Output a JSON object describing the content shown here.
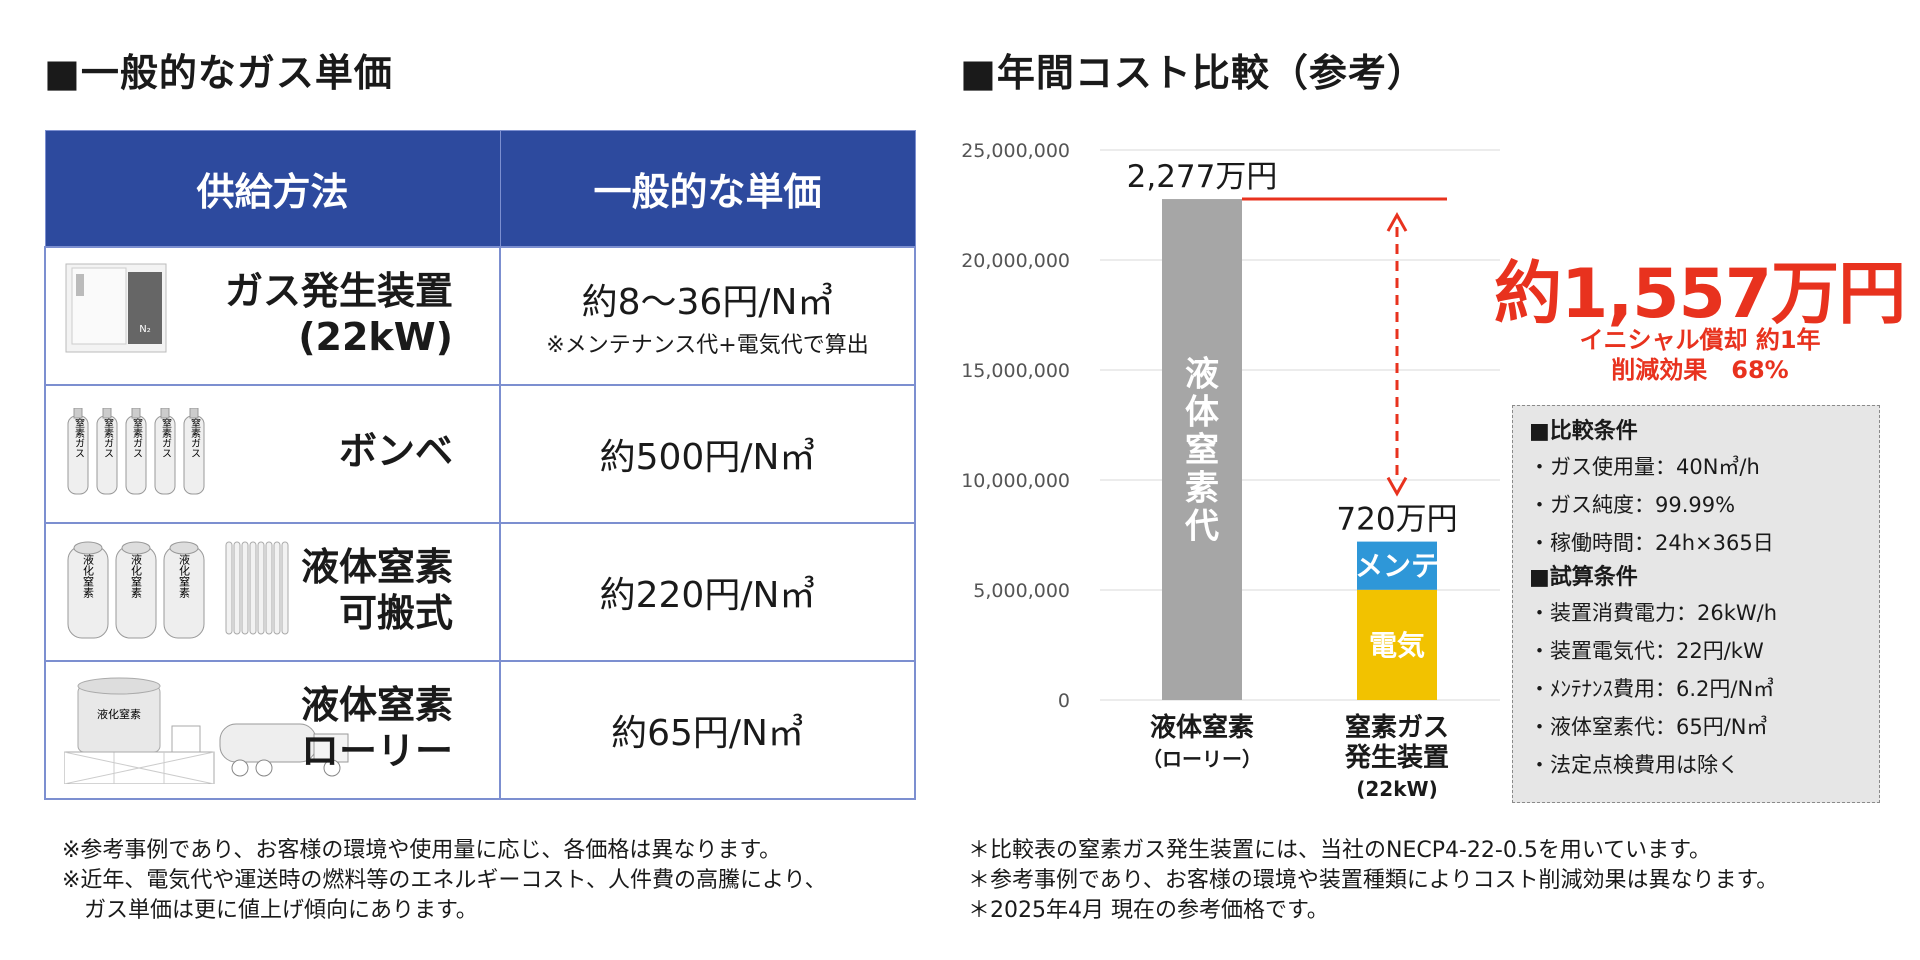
{
  "left": {
    "title": "■一般的なガス単価",
    "table": {
      "headers": [
        "供給方法",
        "一般的な単価"
      ],
      "rows": [
        {
          "method": [
            "ガス発生装置",
            "(22kW)"
          ],
          "price": "約8～36円/N㎥",
          "note": "※メンテナンス代+電気代で算出"
        },
        {
          "method": [
            "ボンベ"
          ],
          "price": "約500円/N㎥",
          "note": ""
        },
        {
          "method": [
            "液体窒素",
            "可搬式"
          ],
          "price": "約220円/N㎥",
          "note": ""
        },
        {
          "method": [
            "液体窒素",
            "ローリー"
          ],
          "price": "約65円/N㎥",
          "note": ""
        }
      ]
    },
    "illustration_text": {
      "cylinder": "窒素ガス",
      "portable": "液化窒素",
      "tank": "液化窒素",
      "generator_badge": "N₂"
    },
    "footnotes": [
      "※参考事例であり、お客様の環境や使用量に応じ、各価格は異なります。",
      "※近年、電気代や運送時の燃料等のエネルギーコスト、人件費の高騰により、",
      "ガス単価は更に値上げ傾向にあります。"
    ]
  },
  "right": {
    "title": "■年間コスト比較（参考）",
    "saving": {
      "amount": "約1,557万円",
      "line1": "イニシャル償却 約1年",
      "line2": "削減効果　68%"
    },
    "conditions": {
      "head1": "■比較条件",
      "items1": [
        "・ガス使用量：40N㎥/h",
        "・ガス純度：99.99%",
        "・稼働時間：24h×365日"
      ],
      "head2": "■試算条件",
      "items2": [
        "・装置消費電力：26kW/h",
        "・装置電気代：22円/kW",
        "・ﾒﾝﾃﾅﾝｽ費用：6.2円/N㎥",
        "・液体窒素代：65円/N㎥",
        "・法定点検費用は除く"
      ]
    },
    "footnotes": [
      "＊比較表の窒素ガス発生装置には、当社のNECP4-22-0.5を用いています。",
      "＊参考事例であり、お客様の環境や装置種類によりコスト削減効果は異なります。",
      "＊2025年4月 現在の参考価格です。"
    ]
  },
  "chart_data": {
    "type": "bar",
    "stacked": true,
    "categories": [
      {
        "label": "液体窒素",
        "sub": [
          "（ローリー）"
        ]
      },
      {
        "label": "窒素ガス",
        "sub": [
          "発生装置",
          "(22kW)"
        ]
      }
    ],
    "series": [
      {
        "name": "液体窒素代",
        "values": [
          22770000,
          0
        ],
        "color": "#a6a6a6"
      },
      {
        "name": "電気",
        "values": [
          0,
          5010000
        ],
        "color": "#f2c200"
      },
      {
        "name": "メンテ",
        "values": [
          0,
          2190000
        ],
        "color": "#2e97d8"
      }
    ],
    "value_labels": [
      "2,277万円",
      "720万円"
    ],
    "ylim": [
      0,
      25000000
    ],
    "yticks": [
      0,
      5000000,
      10000000,
      15000000,
      20000000,
      25000000
    ],
    "ytick_labels": [
      "0",
      "5,000,000",
      "10,000,000",
      "15,000,000",
      "20,000,000",
      "25,000,000"
    ],
    "grid": true,
    "colors": {
      "difference_line": "#e8321e",
      "gridline": "#d9d9d9"
    }
  }
}
